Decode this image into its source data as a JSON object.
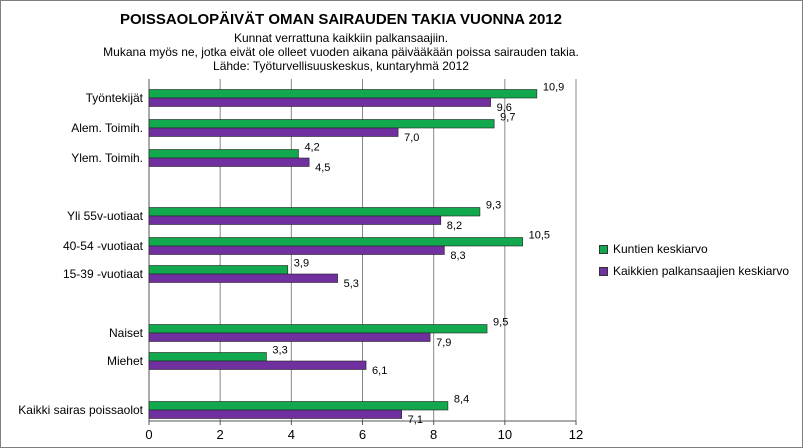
{
  "chart_data": {
    "type": "bar",
    "orientation": "horizontal",
    "title": "POISSAOLOPÄIVÄT OMAN SAIRAUDEN TAKIA VUONNA 2012",
    "subtitle_lines": [
      "Kunnat verrattuna kaikkiin palkansaajiin.",
      "Mukana myös ne, jotka eivät ole olleet vuoden aikana päivääkään poissa sairauden takia.",
      "Lähde: Työturvellisuuskeskus, kuntaryhmä 2012"
    ],
    "categories": [
      "Työntekijät",
      "Alem. Toimih.",
      "Ylem. Toimih.",
      "Yli 55v-uotiaat",
      "40-54 -vuotiaat",
      "15-39 -vuotiaat",
      "Naiset",
      "Miehet",
      "Kaikki sairas poissaolot"
    ],
    "series": [
      {
        "name": "Kuntien keskiarvo",
        "color": "#12a84e",
        "values": [
          10.9,
          9.7,
          4.2,
          9.3,
          10.5,
          3.9,
          9.5,
          3.3,
          8.4
        ],
        "labels": [
          "10,9",
          "9,7",
          "4,2",
          "9,3",
          "10,5",
          "3,9",
          "9,5",
          "3,3",
          "8,4"
        ]
      },
      {
        "name": "Kaikkien palkansaajien keskiarvo",
        "color": "#7030a0",
        "values": [
          9.6,
          7.0,
          4.5,
          8.2,
          8.3,
          5.3,
          7.9,
          6.1,
          7.1
        ],
        "labels": [
          "9,6",
          "7,0",
          "4,5",
          "8,2",
          "8,3",
          "5,3",
          "7,9",
          "6,1",
          "7,1"
        ]
      }
    ],
    "xlim": [
      0,
      12
    ],
    "xticks": [
      0,
      2,
      4,
      6,
      8,
      10,
      12
    ],
    "grid": true,
    "legend_position": "right"
  }
}
